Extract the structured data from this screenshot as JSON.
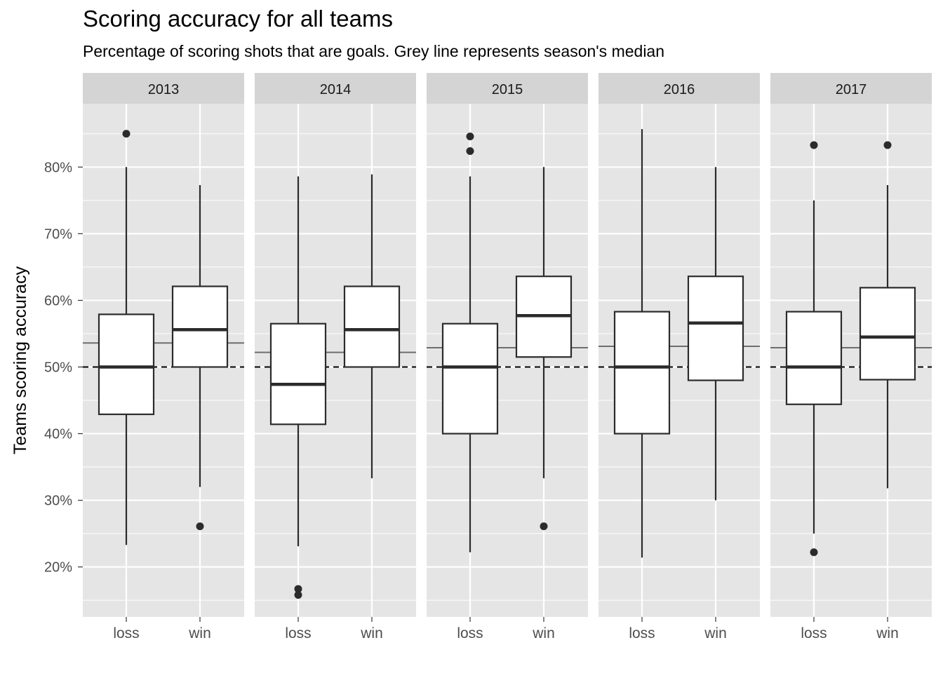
{
  "chart_data": {
    "type": "boxplot",
    "title": "Scoring accuracy for all teams",
    "subtitle": "Percentage of scoring shots that are goals. Grey line represents season's median",
    "xlabel": "",
    "ylabel": "Teams scoring accuracy",
    "ylim": [
      12.5,
      89.5
    ],
    "yticks": [
      20,
      30,
      40,
      50,
      60,
      70,
      80
    ],
    "ytick_labels": [
      "20%",
      "30%",
      "40%",
      "50%",
      "60%",
      "70%",
      "80%"
    ],
    "categories": [
      "loss",
      "win"
    ],
    "reference_line": {
      "value": 50,
      "style": "dashed"
    },
    "grid": true,
    "facets": [
      {
        "label": "2013",
        "season_median": 53.6,
        "boxes": [
          {
            "category": "loss",
            "lower_whisker": 23.3,
            "q1": 42.9,
            "median": 50.0,
            "q3": 57.9,
            "upper_whisker": 80.0,
            "outliers": [
              85.0
            ]
          },
          {
            "category": "win",
            "lower_whisker": 32.0,
            "q1": 50.0,
            "median": 55.6,
            "q3": 62.1,
            "upper_whisker": 77.3,
            "outliers": [
              26.1
            ]
          }
        ]
      },
      {
        "label": "2014",
        "season_median": 52.2,
        "boxes": [
          {
            "category": "loss",
            "lower_whisker": 23.1,
            "q1": 41.4,
            "median": 47.4,
            "q3": 56.5,
            "upper_whisker": 78.6,
            "outliers": [
              16.7,
              15.8
            ]
          },
          {
            "category": "win",
            "lower_whisker": 33.3,
            "q1": 50.0,
            "median": 55.6,
            "q3": 62.1,
            "upper_whisker": 78.9,
            "outliers": []
          }
        ]
      },
      {
        "label": "2015",
        "season_median": 52.9,
        "boxes": [
          {
            "category": "loss",
            "lower_whisker": 22.2,
            "q1": 40.0,
            "median": 50.0,
            "q3": 56.5,
            "upper_whisker": 78.6,
            "outliers": [
              84.6,
              82.4
            ]
          },
          {
            "category": "win",
            "lower_whisker": 33.3,
            "q1": 51.5,
            "median": 57.7,
            "q3": 63.6,
            "upper_whisker": 80.0,
            "outliers": [
              26.1
            ]
          }
        ]
      },
      {
        "label": "2016",
        "season_median": 53.1,
        "boxes": [
          {
            "category": "loss",
            "lower_whisker": 21.4,
            "q1": 40.0,
            "median": 50.0,
            "q3": 58.3,
            "upper_whisker": 85.7,
            "outliers": []
          },
          {
            "category": "win",
            "lower_whisker": 30.0,
            "q1": 48.0,
            "median": 56.6,
            "q3": 63.6,
            "upper_whisker": 80.0,
            "outliers": []
          }
        ]
      },
      {
        "label": "2017",
        "season_median": 52.9,
        "boxes": [
          {
            "category": "loss",
            "lower_whisker": 25.0,
            "q1": 44.4,
            "median": 50.0,
            "q3": 58.3,
            "upper_whisker": 75.0,
            "outliers": [
              83.3,
              22.2
            ]
          },
          {
            "category": "win",
            "lower_whisker": 31.8,
            "q1": 48.1,
            "median": 54.5,
            "q3": 61.9,
            "upper_whisker": 77.3,
            "outliers": [
              83.3
            ]
          }
        ]
      }
    ]
  },
  "colors": {
    "panel_bg": "#e5e5e5",
    "strip_bg": "#d4d4d4",
    "grid_major": "#ffffff",
    "box_fill": "#ffffff",
    "box_stroke": "#2b2b2b",
    "median_line": "#2b2b2b",
    "season_median_line": "#6e6e6e",
    "reference_line": "#000000",
    "axis_text": "#4d4d4d"
  }
}
